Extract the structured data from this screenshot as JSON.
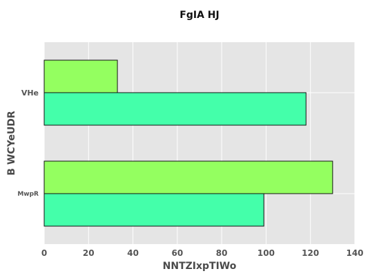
{
  "chart_data": {
    "type": "bar",
    "orientation": "horizontal",
    "title": "FgIA  HJ",
    "xlabel": "NNTZIxpTIWo",
    "ylabel": "B WCYeUDR",
    "categories": [
      "MwpR",
      "VHe"
    ],
    "series": [
      {
        "values": [
          99,
          118
        ],
        "color": "#44ffaa"
      },
      {
        "values": [
          130,
          33
        ],
        "color": "#94ff60"
      }
    ],
    "xlim": [
      0,
      140
    ],
    "xticks": [
      0,
      20,
      40,
      60,
      80,
      100,
      120,
      140
    ],
    "grid": true,
    "background_color": "#e5e5e5"
  }
}
